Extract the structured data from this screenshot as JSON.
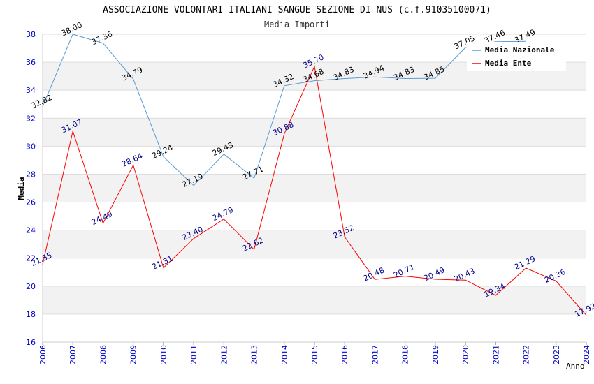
{
  "chart_data": {
    "type": "line",
    "title": "ASSOCIAZIONE VOLONTARI ITALIANI SANGUE SEZIONE DI NUS (c.f.91035100071)",
    "subtitle": "Media Importi",
    "xlabel": "Anno",
    "ylabel": "Media",
    "ylim": [
      16,
      38
    ],
    "yticks": [
      "16",
      "18",
      "20",
      "22",
      "24",
      "26",
      "28",
      "30",
      "32",
      "34",
      "36",
      "38"
    ],
    "categories": [
      "2006",
      "2007",
      "2008",
      "2009",
      "2010",
      "2011",
      "2012",
      "2013",
      "2014",
      "2015",
      "2016",
      "2017",
      "2018",
      "2019",
      "2020",
      "2021",
      "2022",
      "2023",
      "2024"
    ],
    "grid": true,
    "legend_position": "top-right",
    "series": [
      {
        "name": "Media Nazionale",
        "color": "#5b9bd5",
        "label_color": "#000000",
        "values": [
          32.82,
          38.0,
          37.36,
          34.79,
          29.24,
          27.19,
          29.43,
          27.71,
          34.32,
          34.68,
          34.83,
          34.94,
          34.83,
          34.85,
          37.05,
          37.46,
          37.49,
          null,
          null
        ],
        "labels": [
          "32.82",
          "38.00",
          "37.36",
          "34.79",
          "29.24",
          "27.19",
          "29.43",
          "27.71",
          "34.32",
          "34.68",
          "34.83",
          "34.94",
          "34.83",
          "34.85",
          "37.05",
          "37.46",
          "37.49",
          "",
          ""
        ]
      },
      {
        "name": "Media Ente",
        "color": "#ff0000",
        "label_color": "#00008b",
        "values": [
          21.55,
          31.07,
          24.49,
          28.64,
          21.31,
          23.4,
          24.79,
          22.62,
          30.88,
          35.7,
          23.52,
          20.48,
          20.71,
          20.49,
          20.43,
          19.34,
          21.29,
          20.36,
          17.92
        ],
        "labels": [
          "21.55",
          "31.07",
          "24.49",
          "28.64",
          "21.31",
          "23.40",
          "24.79",
          "22.62",
          "30.88",
          "35.70",
          "23.52",
          "20.48",
          "20.71",
          "20.49",
          "20.43",
          "19.34",
          "21.29",
          "20.36",
          "17.92"
        ]
      }
    ]
  }
}
